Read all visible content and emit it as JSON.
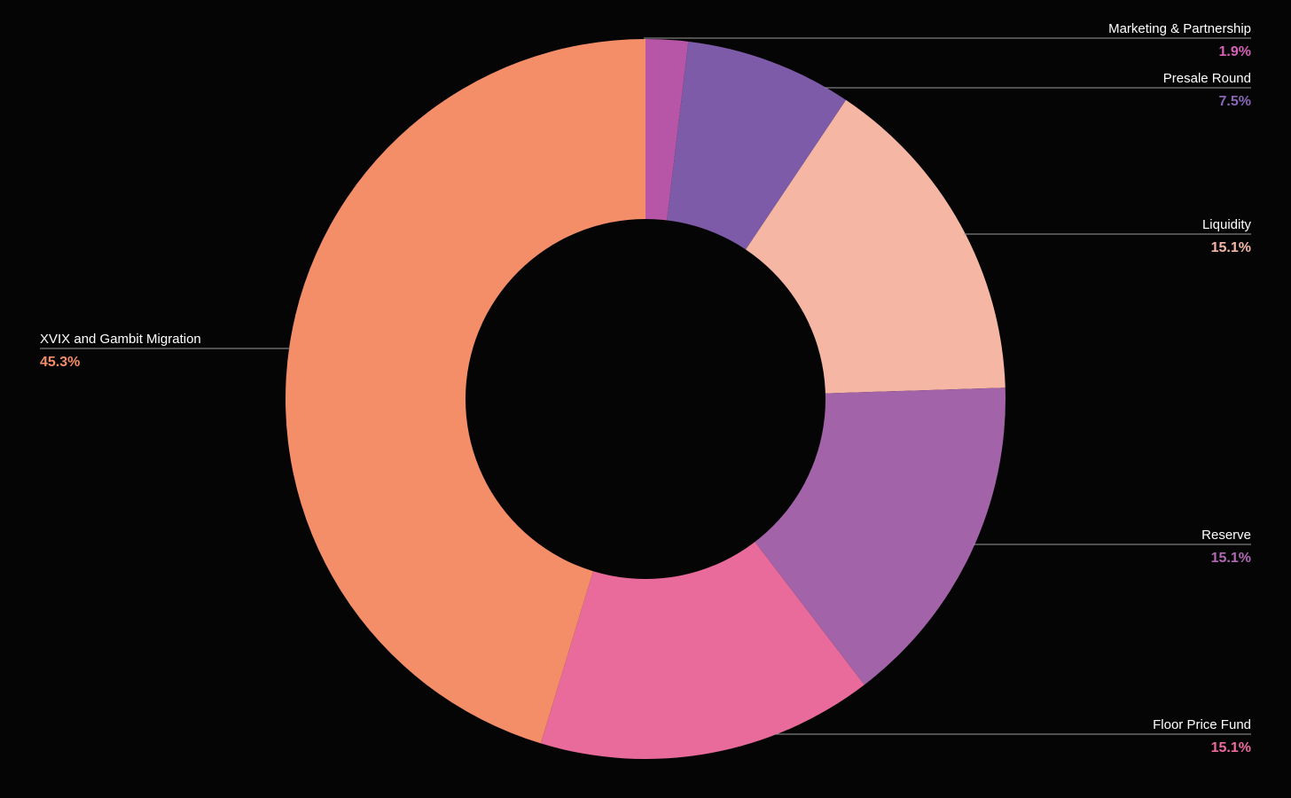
{
  "chart_data": {
    "type": "pie",
    "title": "",
    "donut": true,
    "start": "12 o'clock",
    "direction": "clockwise",
    "slices": [
      {
        "label": "Marketing & Partnership",
        "value": 1.9,
        "value_label": "1.9%",
        "color": "#B756A6"
      },
      {
        "label": "Presale Round",
        "value": 7.5,
        "value_label": "7.5%",
        "color": "#7E5BA8"
      },
      {
        "label": "Liquidity",
        "value": 15.1,
        "value_label": "15.1%",
        "color": "#F5B7A4"
      },
      {
        "label": "Reserve",
        "value": 15.1,
        "value_label": "15.1%",
        "color": "#A263A9"
      },
      {
        "label": "Floor Price Fund",
        "value": 15.1,
        "value_label": "15.1%",
        "color": "#E96B9C"
      },
      {
        "label": "XVIX and Gambit Migration",
        "value": 45.3,
        "value_label": "45.3%",
        "color": "#F48E69"
      }
    ],
    "legend": "none",
    "label_colors": {
      "Marketing & Partnership": "#D760B8",
      "Presale Round": "#8B67B7",
      "Liquidity": "#F5B7A4",
      "Reserve": "#B069B5",
      "Floor Price Fund": "#EE6A9E",
      "XVIX and Gambit Migration": "#F48E69"
    }
  }
}
